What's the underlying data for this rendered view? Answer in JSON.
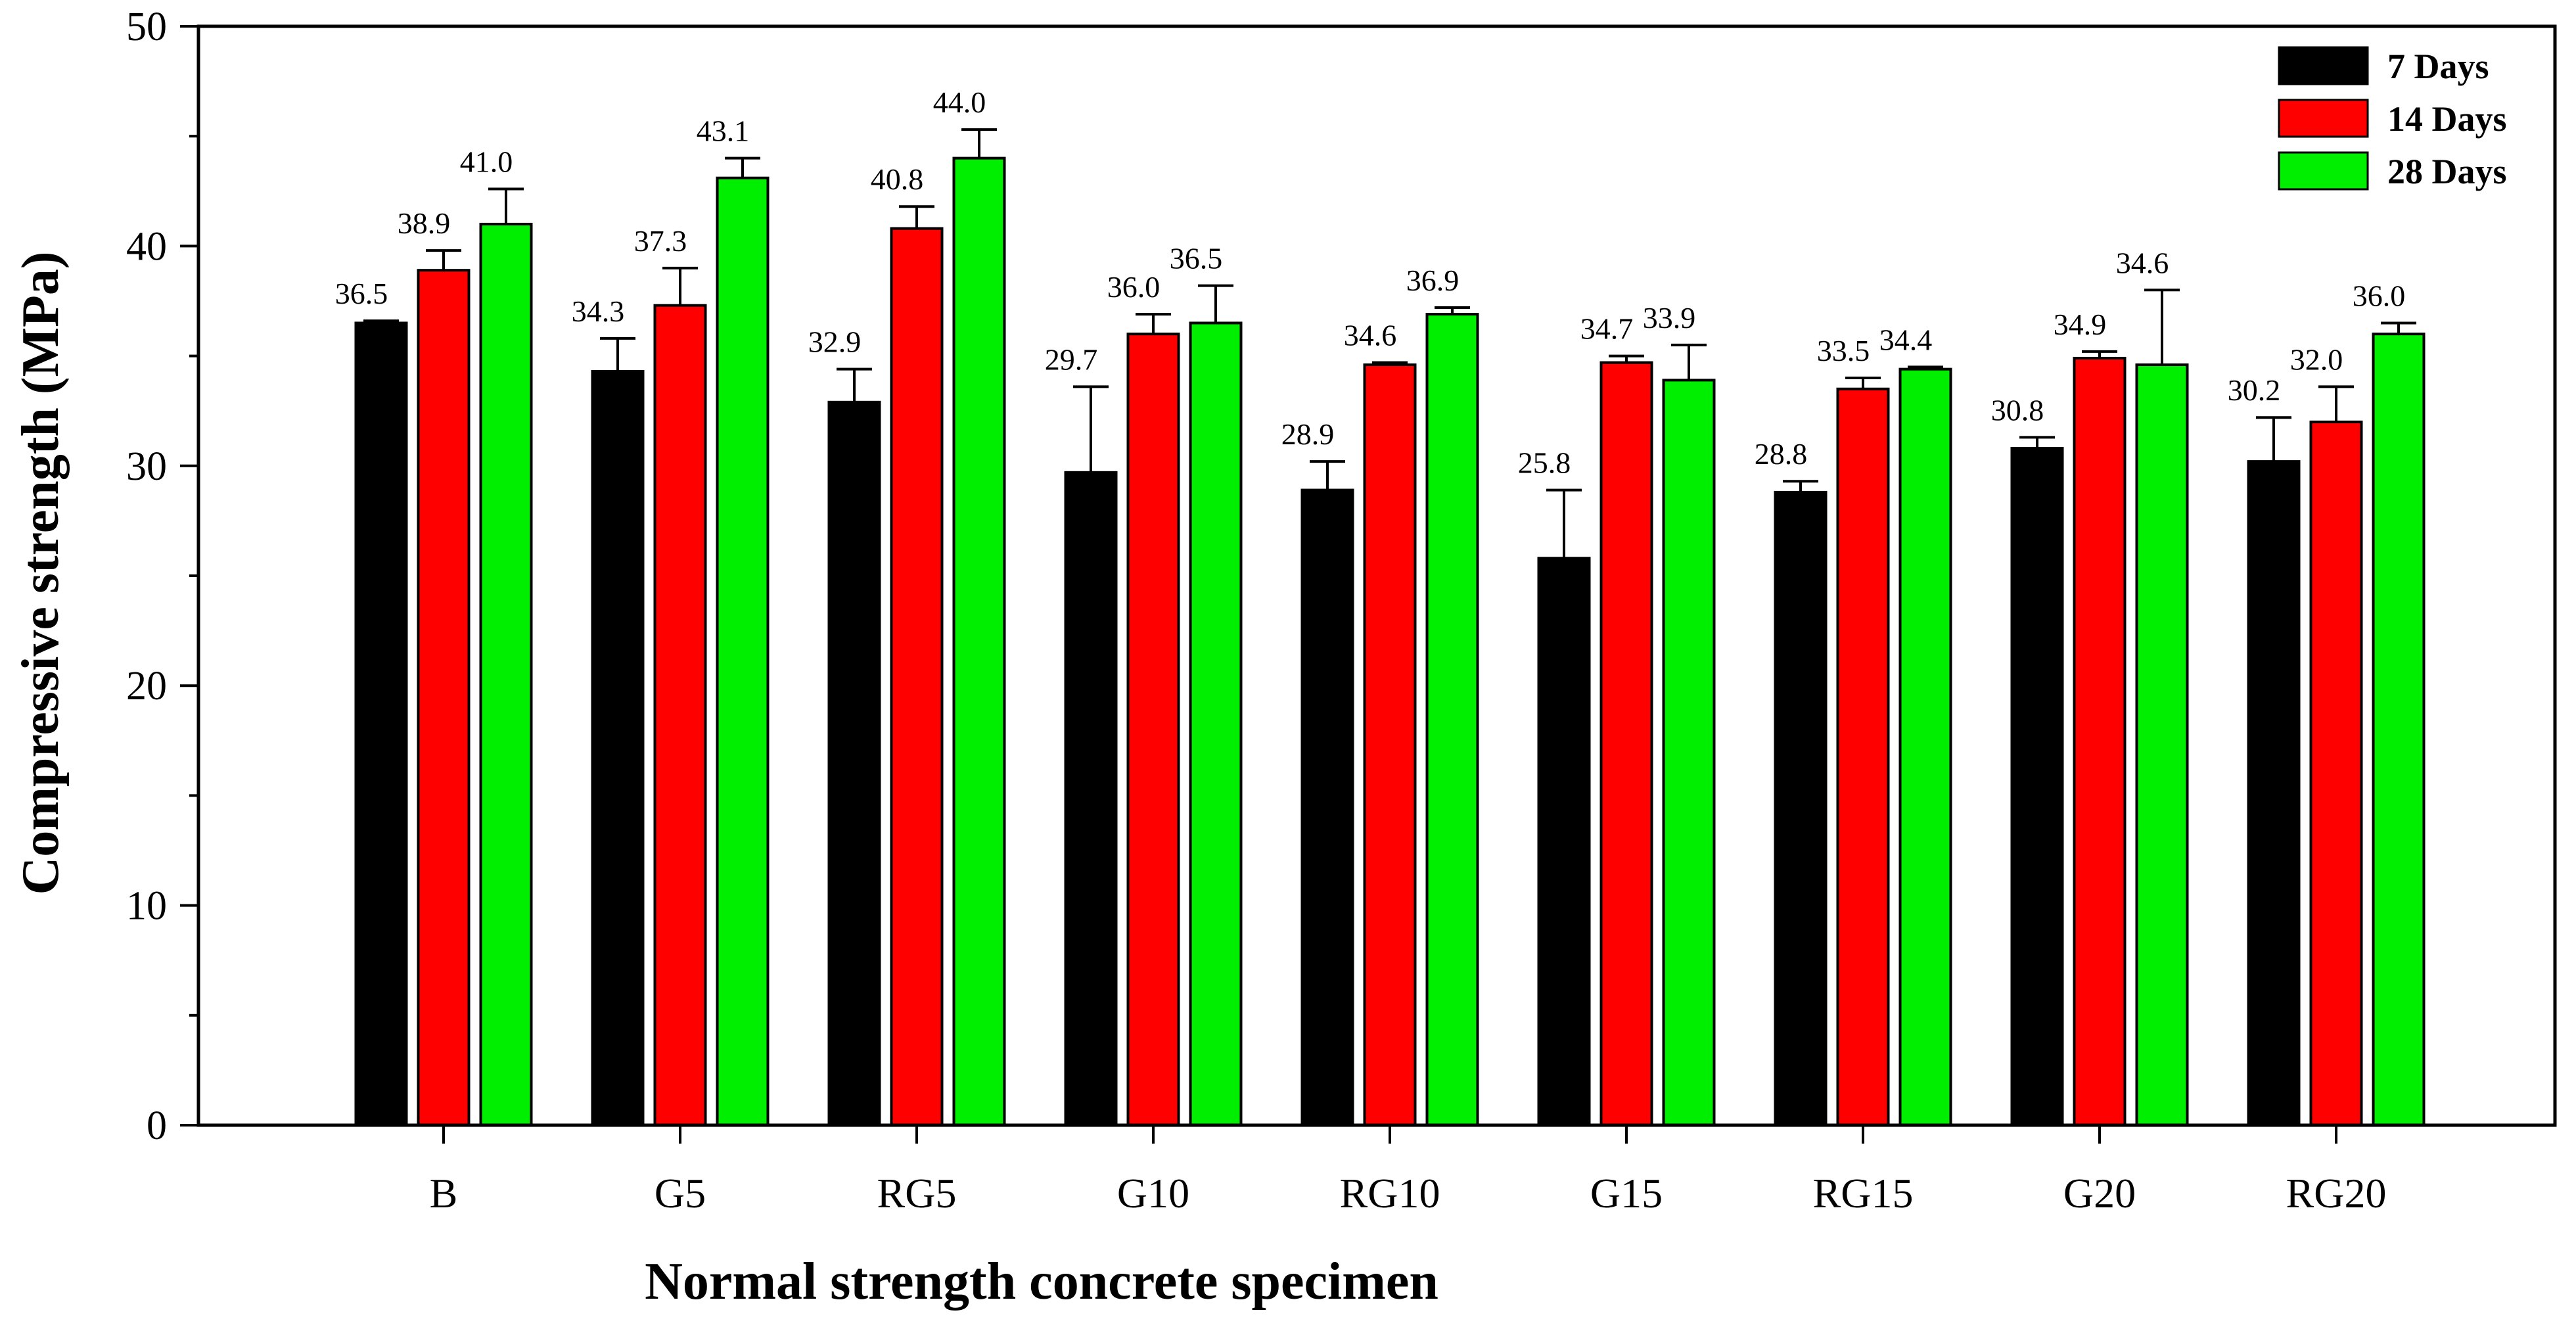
{
  "chart_data": {
    "type": "bar",
    "title": "",
    "xlabel": "Normal strength concrete specimen",
    "ylabel": "Compressive strength (MPa)",
    "ylim": [
      0,
      50
    ],
    "yticks": [
      0,
      10,
      20,
      30,
      40,
      50
    ],
    "grid": false,
    "legend_position": "top-right",
    "categories": [
      "B",
      "G5",
      "RG5",
      "G10",
      "RG10",
      "G15",
      "RG15",
      "G20",
      "RG20"
    ],
    "series": [
      {
        "name": "7 Days",
        "color": "#000000",
        "values": [
          36.5,
          34.3,
          32.9,
          29.7,
          28.9,
          25.8,
          28.8,
          30.8,
          30.2
        ],
        "error": [
          0.1,
          1.5,
          1.5,
          3.9,
          1.3,
          3.1,
          0.5,
          0.5,
          2.0
        ],
        "labels": [
          "36.5",
          "34.3",
          "32.9",
          "29.7",
          "28.9",
          "25.8",
          "28.8",
          "30.8",
          "30.2"
        ]
      },
      {
        "name": "14 Days",
        "color": "#ff0000",
        "values": [
          38.9,
          37.3,
          40.8,
          36.0,
          34.6,
          34.7,
          33.5,
          34.9,
          32.0
        ],
        "error": [
          0.9,
          1.7,
          1.0,
          0.9,
          0.1,
          0.3,
          0.5,
          0.3,
          1.6
        ],
        "labels": [
          "38.9",
          "37.3",
          "40.8",
          "36.0",
          "34.6",
          "34.7",
          "33.5",
          "34.9",
          "32.0"
        ]
      },
      {
        "name": "28 Days",
        "color": "#00ee00",
        "values": [
          41.0,
          43.1,
          44.0,
          36.5,
          36.9,
          33.9,
          34.4,
          34.6,
          36.0
        ],
        "error": [
          1.6,
          0.9,
          1.3,
          1.7,
          0.3,
          1.6,
          0.1,
          3.4,
          0.5
        ],
        "labels": [
          "41.0",
          "43.1",
          "44.0",
          "36.5",
          "36.9",
          "33.9",
          "34.4",
          "34.6",
          "36.0"
        ]
      }
    ]
  }
}
